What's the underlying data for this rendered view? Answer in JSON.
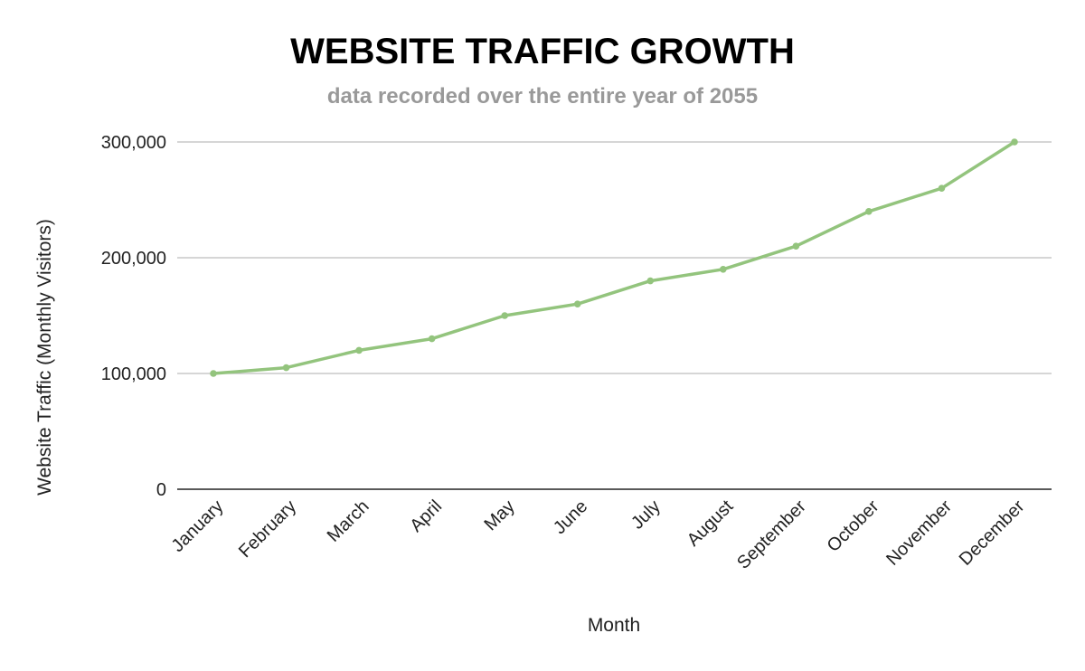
{
  "chart_data": {
    "type": "line",
    "title": "WEBSITE TRAFFIC GROWTH",
    "subtitle": "data recorded over the entire year of 2055",
    "xlabel": "Month",
    "ylabel": "Website Traffic (Monthly Visitors)",
    "categories": [
      "January",
      "February",
      "March",
      "April",
      "May",
      "June",
      "July",
      "August",
      "September",
      "October",
      "November",
      "December"
    ],
    "series": [
      {
        "values": [
          100000,
          105000,
          120000,
          130000,
          150000,
          160000,
          180000,
          190000,
          210000,
          240000,
          260000,
          300000
        ],
        "color": "#93c47d"
      }
    ],
    "ylim": [
      0,
      300000
    ],
    "yticks": [
      0,
      100000,
      200000,
      300000
    ],
    "ytick_labels": [
      "0",
      "100,000",
      "200,000",
      "300,000"
    ],
    "grid": true,
    "legend": "none"
  }
}
